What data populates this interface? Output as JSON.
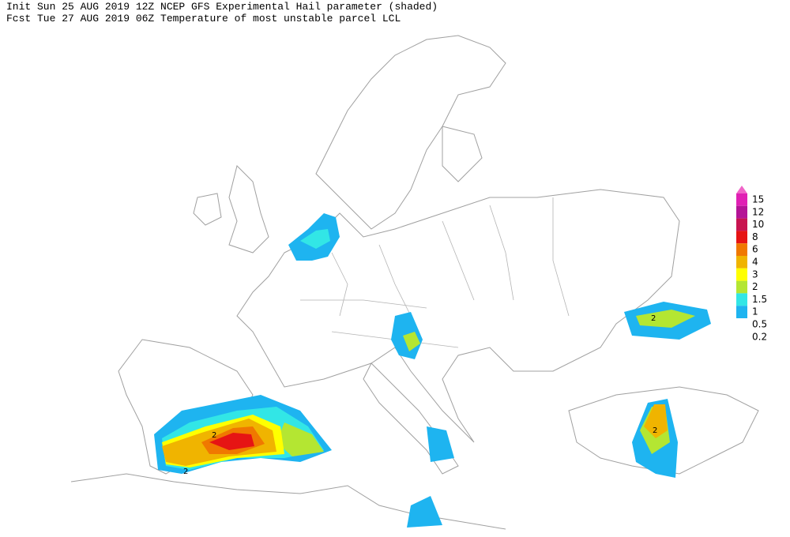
{
  "header": {
    "line1": "Init  Sun 25 AUG 2019 12Z  NCEP GFS Experimental Hail parameter (shaded)",
    "line2": "Fcst Tue 27 AUG 2019 06Z  Temperature of most unstable parcel LCL"
  },
  "legend": [
    {
      "label": 15,
      "color": "#f064c8"
    },
    {
      "label": 12,
      "color": "#e020b4"
    },
    {
      "label": 10,
      "color": "#b41496"
    },
    {
      "label": 8,
      "color": "#c81450"
    },
    {
      "label": 6,
      "color": "#e61414"
    },
    {
      "label": 4,
      "color": "#f07800"
    },
    {
      "label": 3,
      "color": "#f0b400"
    },
    {
      "label": 2,
      "color": "#ffff00"
    },
    {
      "label": 1.5,
      "color": "#b4e632"
    },
    {
      "label": 1,
      "color": "#32e6e6"
    },
    {
      "label": 0.5,
      "color": "#1eb4f0"
    },
    {
      "label": 0.2,
      "color": "#ffffff"
    }
  ],
  "map": {
    "contour_labels": [
      "2",
      "2",
      "2",
      "2"
    ]
  }
}
